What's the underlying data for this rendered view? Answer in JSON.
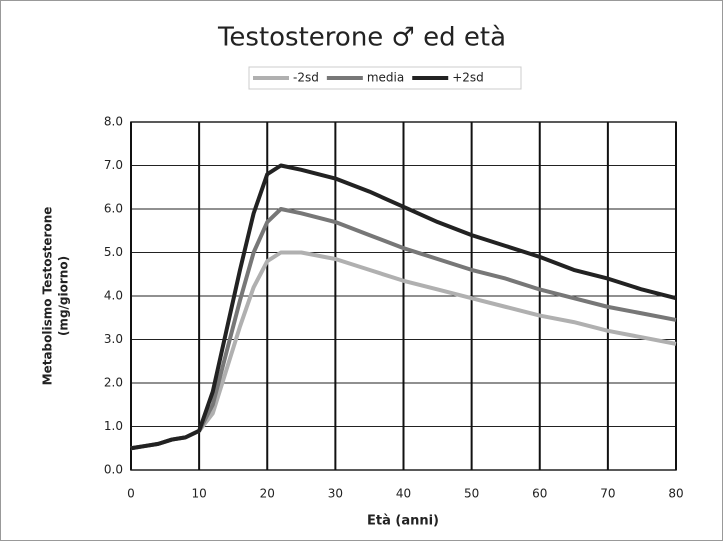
{
  "chart_data": {
    "type": "line",
    "title": "Testosterone ♂ ed età",
    "x_label": "Età (anni)",
    "y_label": [
      "Metabolismo Testosterone",
      "(mg/giorno)"
    ],
    "x": [
      0,
      2,
      4,
      6,
      8,
      10,
      12,
      14,
      16,
      18,
      20,
      22,
      25,
      30,
      35,
      40,
      45,
      50,
      55,
      60,
      65,
      70,
      75,
      80
    ],
    "series": [
      {
        "name": "-2sd",
        "color": "#b0b0b0",
        "values": [
          0.5,
          0.55,
          0.6,
          0.7,
          0.75,
          0.9,
          1.3,
          2.3,
          3.3,
          4.2,
          4.8,
          5.0,
          5.0,
          4.85,
          4.6,
          4.35,
          4.15,
          3.95,
          3.75,
          3.55,
          3.4,
          3.2,
          3.05,
          2.9
        ]
      },
      {
        "name": "media",
        "color": "#777777",
        "values": [
          0.5,
          0.55,
          0.6,
          0.7,
          0.75,
          0.9,
          1.5,
          2.7,
          3.9,
          5.0,
          5.7,
          6.0,
          5.9,
          5.7,
          5.4,
          5.1,
          4.85,
          4.6,
          4.4,
          4.15,
          3.95,
          3.75,
          3.6,
          3.45
        ]
      },
      {
        "name": "+2sd",
        "color": "#222222",
        "values": [
          0.5,
          0.55,
          0.6,
          0.7,
          0.75,
          0.9,
          1.8,
          3.2,
          4.6,
          5.9,
          6.8,
          7.0,
          6.9,
          6.7,
          6.4,
          6.05,
          5.7,
          5.4,
          5.15,
          4.9,
          4.6,
          4.4,
          4.15,
          3.95
        ]
      }
    ],
    "xlim": [
      0,
      80
    ],
    "xticks": [
      0,
      10,
      20,
      30,
      40,
      50,
      60,
      70,
      80
    ],
    "ylim": [
      0,
      8
    ],
    "yticks": [
      {
        "value": 0,
        "label": "0.0"
      },
      {
        "value": 1,
        "label": "1.0"
      },
      {
        "value": 2,
        "label": "2.0"
      },
      {
        "value": 3,
        "label": "3.0"
      },
      {
        "value": 4,
        "label": "4.0"
      },
      {
        "value": 5,
        "label": "5.0"
      },
      {
        "value": 6,
        "label": "6.0"
      },
      {
        "value": 7,
        "label": "7.0"
      },
      {
        "value": 8,
        "label": "8.0"
      }
    ],
    "grid": true,
    "legend": "top"
  }
}
